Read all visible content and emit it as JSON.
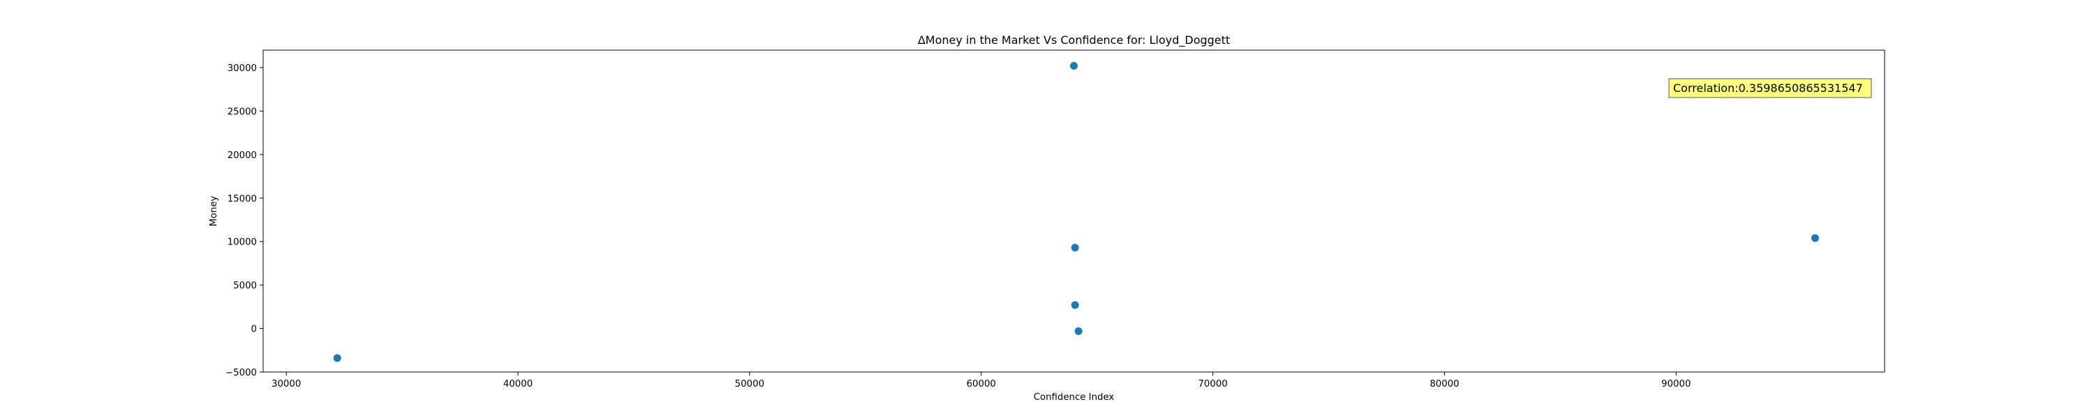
{
  "chart_data": {
    "type": "scatter",
    "title": "ΔMoney in the Market Vs Confidence for: Lloyd_Doggett",
    "xlabel": "Confidence Index",
    "ylabel": "Money",
    "xlim": [
      29000,
      99000
    ],
    "ylim": [
      -5000,
      32000
    ],
    "xticks": [
      30000,
      40000,
      50000,
      60000,
      70000,
      80000,
      90000
    ],
    "yticks": [
      -5000,
      0,
      5000,
      10000,
      15000,
      20000,
      25000,
      30000
    ],
    "grid": false,
    "marker_color": "#1f77b4",
    "points": [
      {
        "x": 32200,
        "y": -3400
      },
      {
        "x": 64000,
        "y": 30200
      },
      {
        "x": 64050,
        "y": 9300
      },
      {
        "x": 64050,
        "y": 2700
      },
      {
        "x": 64200,
        "y": -300
      },
      {
        "x": 96000,
        "y": 10400
      }
    ],
    "annotation": {
      "text": "Correlation:0.3598650865531547",
      "box_color": "#ffff80"
    }
  }
}
